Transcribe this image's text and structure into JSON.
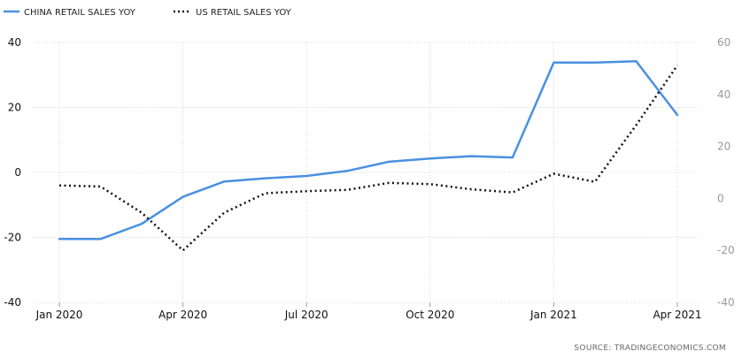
{
  "chart_data": {
    "type": "line",
    "x": [
      "2020-01",
      "2020-02",
      "2020-03",
      "2020-04",
      "2020-05",
      "2020-06",
      "2020-07",
      "2020-08",
      "2020-09",
      "2020-10",
      "2020-11",
      "2020-12",
      "2021-01",
      "2021-02",
      "2021-03",
      "2021-04"
    ],
    "x_tick_labels": [
      "Jan 2020",
      "Apr 2020",
      "Jul 2020",
      "Oct 2020",
      "Jan 2021",
      "Apr 2021"
    ],
    "x_tick_months": [
      "2020-01",
      "2020-04",
      "2020-07",
      "2020-10",
      "2021-01",
      "2021-04"
    ],
    "series": [
      {
        "name": "CHINA RETAIL SALES YOY",
        "axis": "left",
        "color": "#4a90e2",
        "style": "solid",
        "values": [
          -20.5,
          -20.5,
          -15.8,
          -7.5,
          -2.8,
          -1.8,
          -1.1,
          0.5,
          3.3,
          4.3,
          5.0,
          4.6,
          33.8,
          33.8,
          34.2,
          17.7
        ]
      },
      {
        "name": "US RETAIL SALES YOY",
        "axis": "right",
        "color": "#111111",
        "style": "dotted",
        "values": [
          5,
          4.6,
          -5.5,
          -20,
          -5.5,
          2,
          2.8,
          3.3,
          6,
          5.5,
          3.5,
          2.3,
          9.5,
          6.4,
          28.2,
          51.2
        ]
      }
    ],
    "y_left": {
      "range": [
        -40,
        40
      ],
      "ticks": [
        "40",
        "20",
        "0",
        "-20",
        "-40"
      ]
    },
    "y_right": {
      "range": [
        -40,
        60
      ],
      "ticks": [
        "60",
        "40",
        "20",
        "0",
        "-20",
        "-40"
      ]
    },
    "grid": true,
    "legend_position": "top-left",
    "source": "SOURCE:  TRADINGECONOMICS.COM"
  }
}
